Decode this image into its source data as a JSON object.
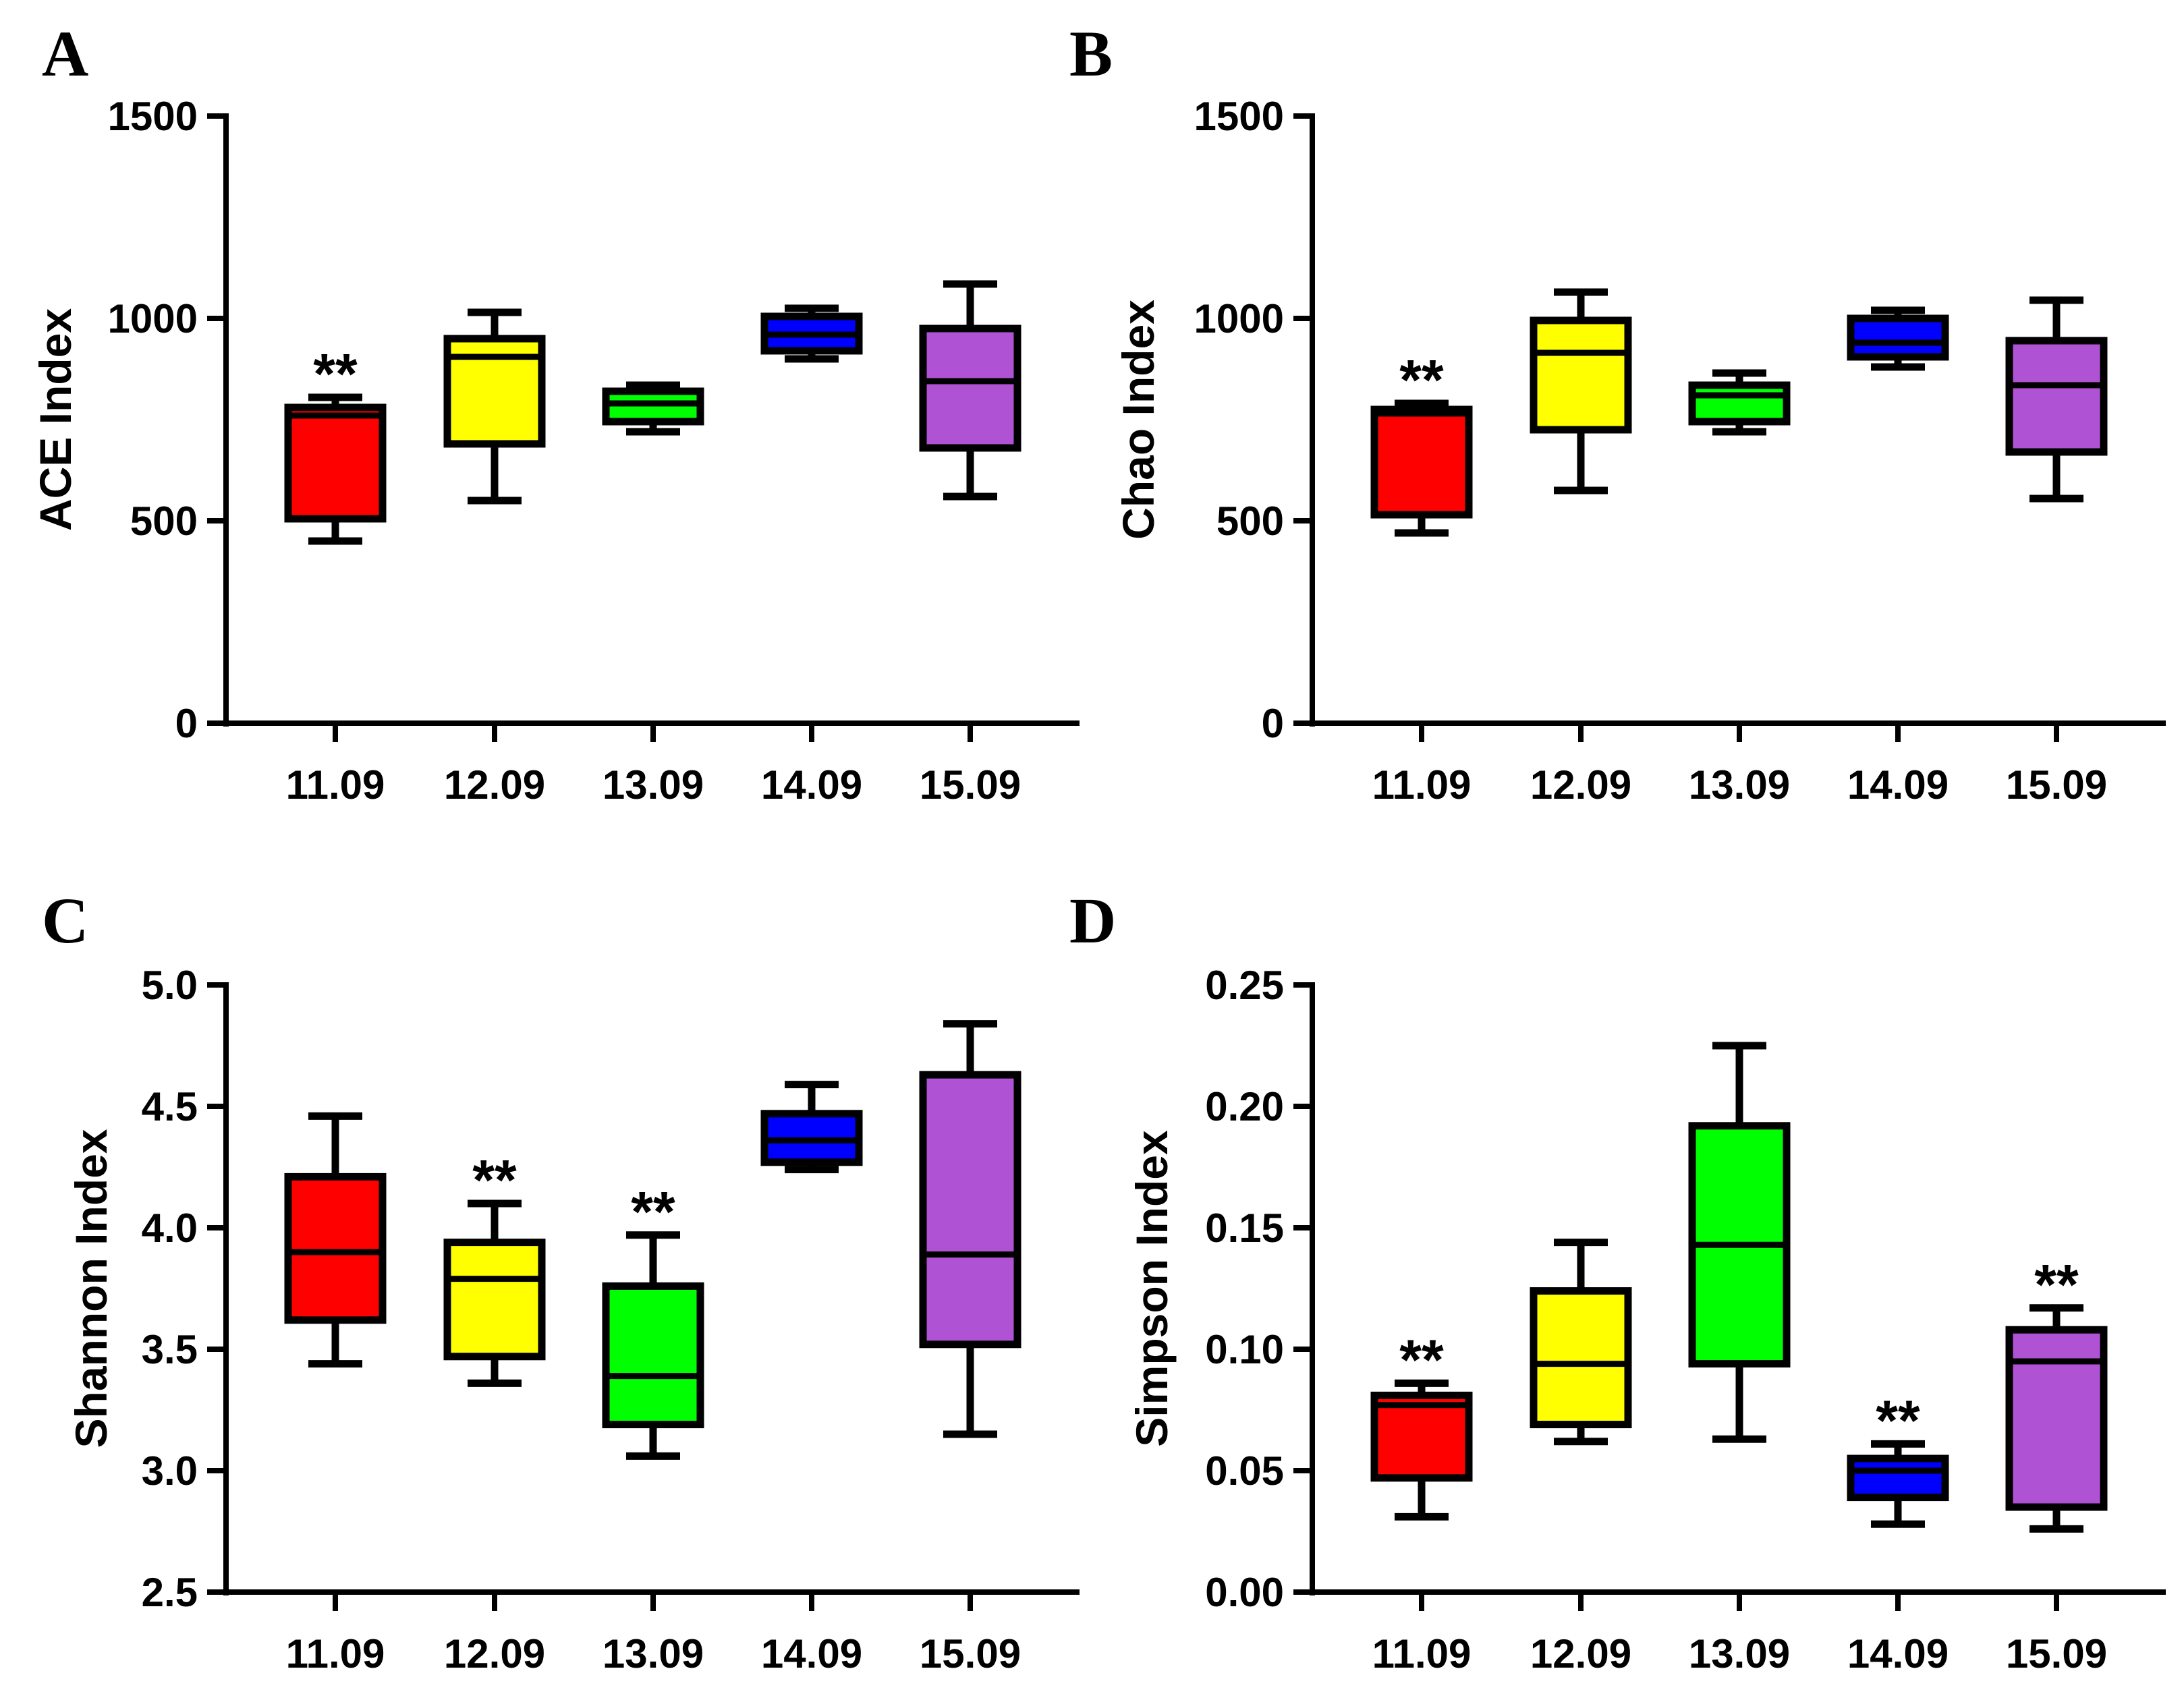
{
  "chart_data": [
    {
      "panel": "A",
      "type": "box",
      "ylabel": "ACE Index",
      "ylim": [
        0,
        1500
      ],
      "yticks": [
        0,
        500,
        1000,
        1500
      ],
      "categories": [
        "11.09",
        "12.09",
        "13.09",
        "14.09",
        "15.09"
      ],
      "boxes": [
        {
          "category": "11.09",
          "color": "#ff0000",
          "min": 450,
          "q1": 505,
          "median": 760,
          "q3": 780,
          "max": 805,
          "annotation": "**"
        },
        {
          "category": "12.09",
          "color": "#ffff00",
          "min": 550,
          "q1": 690,
          "median": 905,
          "q3": 950,
          "max": 1015,
          "annotation": ""
        },
        {
          "category": "13.09",
          "color": "#00ff00",
          "min": 720,
          "q1": 745,
          "median": 790,
          "q3": 820,
          "max": 835,
          "annotation": ""
        },
        {
          "category": "14.09",
          "color": "#0000ff",
          "min": 900,
          "q1": 920,
          "median": 960,
          "q3": 1005,
          "max": 1025,
          "annotation": ""
        },
        {
          "category": "15.09",
          "color": "#b052d4",
          "min": 560,
          "q1": 680,
          "median": 845,
          "q3": 975,
          "max": 1085,
          "annotation": ""
        }
      ]
    },
    {
      "panel": "B",
      "type": "box",
      "ylabel": "Chao Index",
      "ylim": [
        0,
        1500
      ],
      "yticks": [
        0,
        500,
        1000,
        1500
      ],
      "categories": [
        "11.09",
        "12.09",
        "13.09",
        "14.09",
        "15.09"
      ],
      "boxes": [
        {
          "category": "11.09",
          "color": "#ff0000",
          "min": 470,
          "q1": 515,
          "median": 765,
          "q3": 775,
          "max": 790,
          "annotation": "**"
        },
        {
          "category": "12.09",
          "color": "#ffff00",
          "min": 575,
          "q1": 725,
          "median": 915,
          "q3": 995,
          "max": 1065,
          "annotation": ""
        },
        {
          "category": "13.09",
          "color": "#00ff00",
          "min": 720,
          "q1": 745,
          "median": 810,
          "q3": 835,
          "max": 865,
          "annotation": ""
        },
        {
          "category": "14.09",
          "color": "#0000ff",
          "min": 880,
          "q1": 905,
          "median": 940,
          "q3": 1000,
          "max": 1020,
          "annotation": ""
        },
        {
          "category": "15.09",
          "color": "#b052d4",
          "min": 555,
          "q1": 670,
          "median": 835,
          "q3": 945,
          "max": 1045,
          "annotation": ""
        }
      ]
    },
    {
      "panel": "C",
      "type": "box",
      "ylabel": "Shannon Index",
      "ylim": [
        2.5,
        5.0
      ],
      "yticks": [
        "2.5",
        "3.0",
        "3.5",
        "4.0",
        "4.5",
        "5.0"
      ],
      "categories": [
        "11.09",
        "12.09",
        "13.09",
        "14.09",
        "15.09"
      ],
      "boxes": [
        {
          "category": "11.09",
          "color": "#ff0000",
          "min": 3.44,
          "q1": 3.62,
          "median": 3.9,
          "q3": 4.21,
          "max": 4.46,
          "annotation": ""
        },
        {
          "category": "12.09",
          "color": "#ffff00",
          "min": 3.36,
          "q1": 3.47,
          "median": 3.79,
          "q3": 3.94,
          "max": 4.1,
          "annotation": "**"
        },
        {
          "category": "13.09",
          "color": "#00ff00",
          "min": 3.06,
          "q1": 3.19,
          "median": 3.39,
          "q3": 3.76,
          "max": 3.97,
          "annotation": "**"
        },
        {
          "category": "14.09",
          "color": "#0000ff",
          "min": 4.24,
          "q1": 4.27,
          "median": 4.36,
          "q3": 4.47,
          "max": 4.59,
          "annotation": ""
        },
        {
          "category": "15.09",
          "color": "#b052d4",
          "min": 3.15,
          "q1": 3.52,
          "median": 3.89,
          "q3": 4.63,
          "max": 4.84,
          "annotation": ""
        }
      ]
    },
    {
      "panel": "D",
      "type": "box",
      "ylabel": "Simpson Index",
      "ylim": [
        0.0,
        0.25
      ],
      "yticks": [
        "0.00",
        "0.05",
        "0.10",
        "0.15",
        "0.20",
        "0.25"
      ],
      "categories": [
        "11.09",
        "12.09",
        "13.09",
        "14.09",
        "15.09"
      ],
      "boxes": [
        {
          "category": "11.09",
          "color": "#ff0000",
          "min": 0.031,
          "q1": 0.047,
          "median": 0.077,
          "q3": 0.081,
          "max": 0.086,
          "annotation": "**"
        },
        {
          "category": "12.09",
          "color": "#ffff00",
          "min": 0.062,
          "q1": 0.069,
          "median": 0.094,
          "q3": 0.124,
          "max": 0.144,
          "annotation": ""
        },
        {
          "category": "13.09",
          "color": "#00ff00",
          "min": 0.063,
          "q1": 0.094,
          "median": 0.143,
          "q3": 0.192,
          "max": 0.225,
          "annotation": ""
        },
        {
          "category": "14.09",
          "color": "#0000ff",
          "min": 0.028,
          "q1": 0.039,
          "median": 0.05,
          "q3": 0.055,
          "max": 0.061,
          "annotation": "**"
        },
        {
          "category": "15.09",
          "color": "#b052d4",
          "min": 0.026,
          "q1": 0.035,
          "median": 0.095,
          "q3": 0.108,
          "max": 0.117,
          "annotation": "**"
        }
      ]
    }
  ]
}
